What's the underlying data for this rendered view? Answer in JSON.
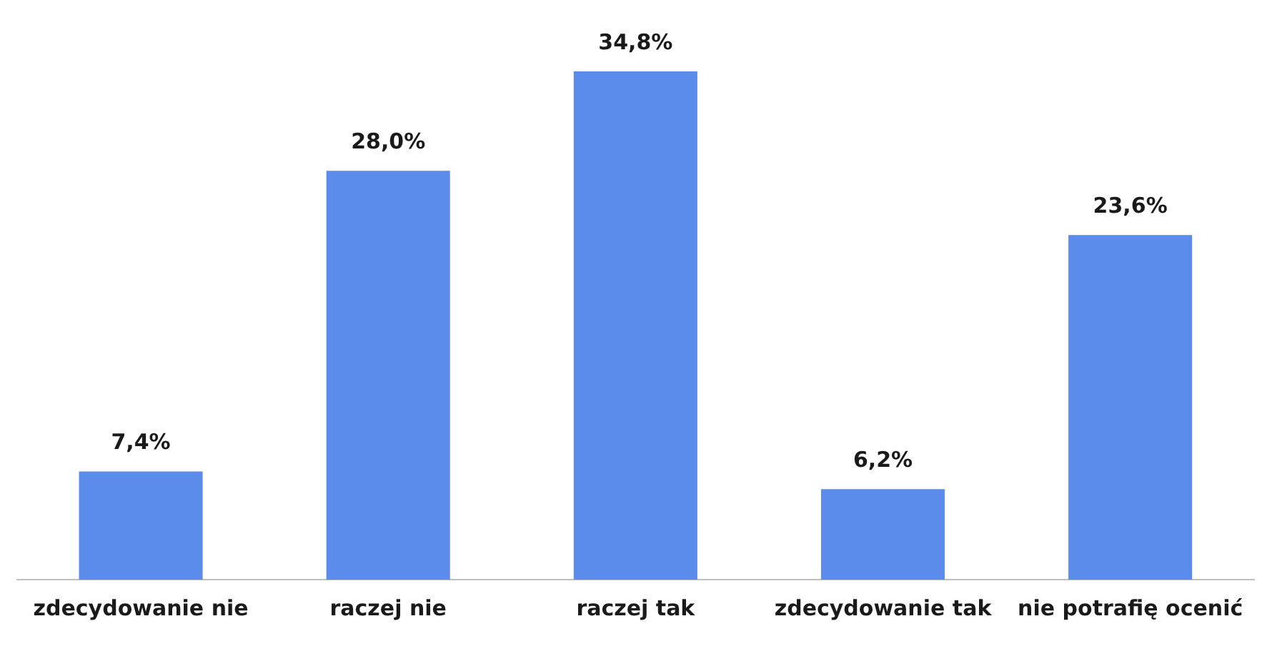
{
  "chart_data": {
    "type": "bar",
    "categories": [
      "zdecydowanie nie",
      "raczej nie",
      "raczej tak",
      "zdecydowanie tak",
      "nie potrafię ocenić"
    ],
    "values": [
      7.4,
      28.0,
      34.8,
      6.2,
      23.6
    ],
    "value_labels": [
      "7,4%",
      "28,0%",
      "34,8%",
      "6,2%",
      "23,6%"
    ],
    "color": "#5b8cec",
    "grid": false,
    "legend": false
  }
}
